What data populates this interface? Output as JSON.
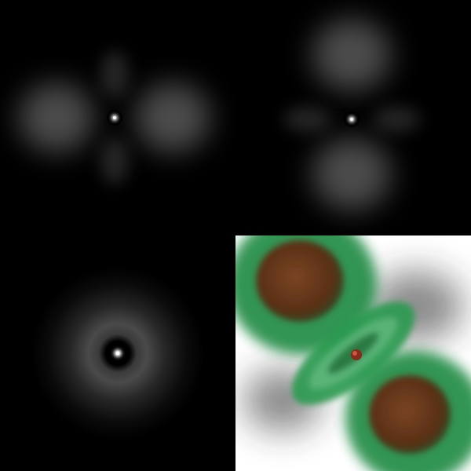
{
  "panels": [
    {
      "name": "orbital-density-horizontal-lobes",
      "orientation": "horizontal"
    },
    {
      "name": "orbital-density-vertical-lobes",
      "orientation": "vertical"
    },
    {
      "name": "orbital-density-ring",
      "orientation": "radial"
    },
    {
      "name": "orbital-isosurface-render",
      "orientation": "diagonal"
    }
  ],
  "colors": {
    "background": "#000000",
    "glow": "#ffffff",
    "isosurface_green": "#1f8f45",
    "isosurface_brown": "#6b3a1e",
    "render_background": "#ffffff"
  }
}
